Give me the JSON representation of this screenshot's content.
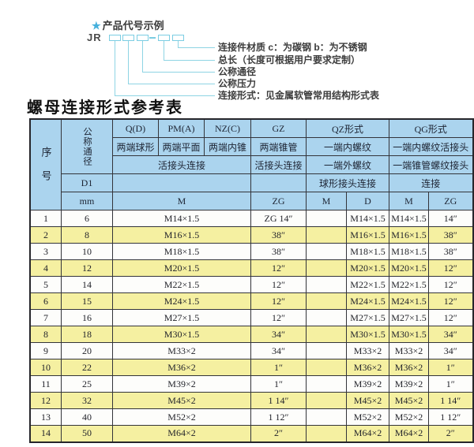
{
  "diagram": {
    "star": "★",
    "heading": "产品代号示例",
    "code_prefix": "JR",
    "labels": [
      "连接件材质  c：为碳钢  b：为不锈钢",
      "总长（长度可根据用户要求定制）",
      "公称通径",
      "公称压力",
      "连接形式：见金属软管常用结构形式表"
    ]
  },
  "title": "螺母连接形式参考表",
  "colors": {
    "header_blue": "#abd4ee",
    "row_yellow": "#f5f0a1",
    "line_cyan": "#8ed4e4"
  },
  "table": {
    "header": {
      "seq": "序号",
      "dn": "公称通径",
      "d1": "D1",
      "mm": "mm",
      "q_form": "Q(D)",
      "q_desc": "两端球形",
      "pm_form": "PM(A)",
      "pm_desc": "两端平面",
      "nz_form": "NZ(C)",
      "nz_desc": "两端内锥",
      "union_conn": "活接头连接",
      "m_unit": "M",
      "gz_form": "GZ",
      "gz_desc": "两端锥管",
      "gz_conn": "活接头连接",
      "gz_unit": "ZG",
      "qz_form": "QZ形式",
      "qz_desc1": "一端内螺纹",
      "qz_desc2": "一端外螺纹",
      "qz_conn": "球形接头连接",
      "qz_m": "M",
      "qz_d": "D",
      "qg_form": "QG形式",
      "qg_desc1": "一端内螺纹活接头",
      "qg_desc2": "一端锥管螺纹接头",
      "qg_conn": "连接",
      "qg_m": "M",
      "qg_zg": "ZG"
    },
    "rows": [
      {
        "seq": "1",
        "dn": "6",
        "m": "M14×1.5",
        "gz_zg": "ZG 1/4\"",
        "qz_m": "",
        "qz_d": "M14×1.5",
        "qg_m": "M14×1.5",
        "qg_zg": "1/4\""
      },
      {
        "seq": "2",
        "dn": "8",
        "m": "M16×1.5",
        "gz_zg": "3/8\"",
        "qz_m": "",
        "qz_d": "M16×1.5",
        "qg_m": "M16×1.5",
        "qg_zg": "3/8\""
      },
      {
        "seq": "3",
        "dn": "10",
        "m": "M18×1.5",
        "gz_zg": "3/8\"",
        "qz_m": "",
        "qz_d": "M18×1.5",
        "qg_m": "M18×1.5",
        "qg_zg": "3/8\""
      },
      {
        "seq": "4",
        "dn": "12",
        "m": "M20×1.5",
        "gz_zg": "1/2\"",
        "qz_m": "",
        "qz_d": "M20×1.5",
        "qg_m": "M20×1.5",
        "qg_zg": "1/2\""
      },
      {
        "seq": "5",
        "dn": "14",
        "m": "M22×1.5",
        "gz_zg": "1/2\"",
        "qz_m": "",
        "qz_d": "M22×1.5",
        "qg_m": "M22×1.5",
        "qg_zg": "1/2\""
      },
      {
        "seq": "6",
        "dn": "15",
        "m": "M24×1.5",
        "gz_zg": "1/2\"",
        "qz_m": "",
        "qz_d": "M24×1.5",
        "qg_m": "M24×1.5",
        "qg_zg": "1/2\""
      },
      {
        "seq": "7",
        "dn": "16",
        "m": "M27×1.5",
        "gz_zg": "1/2\"",
        "qz_m": "",
        "qz_d": "M27×1.5",
        "qg_m": "M27×1.5",
        "qg_zg": "1/2\""
      },
      {
        "seq": "8",
        "dn": "18",
        "m": "M30×1.5",
        "gz_zg": "3/4\"",
        "qz_m": "",
        "qz_d": "M30×1.5",
        "qg_m": "M30×1.5",
        "qg_zg": "3/4\""
      },
      {
        "seq": "9",
        "dn": "20",
        "m": "M33×2",
        "gz_zg": "3/4\"",
        "qz_m": "",
        "qz_d": "M33×2",
        "qg_m": "M33×2",
        "qg_zg": "3/4\""
      },
      {
        "seq": "10",
        "dn": "22",
        "m": "M36×2",
        "gz_zg": "1\"",
        "qz_m": "",
        "qz_d": "M36×2",
        "qg_m": "M36×2",
        "qg_zg": "1\""
      },
      {
        "seq": "11",
        "dn": "25",
        "m": "M39×2",
        "gz_zg": "1\"",
        "qz_m": "",
        "qz_d": "M39×2",
        "qg_m": "M39×2",
        "qg_zg": "1\""
      },
      {
        "seq": "12",
        "dn": "32",
        "m": "M45×2",
        "gz_zg": "1 1/4\"",
        "qz_m": "",
        "qz_d": "M45×2",
        "qg_m": "M45×2",
        "qg_zg": "1 1/4\""
      },
      {
        "seq": "13",
        "dn": "40",
        "m": "M52×2",
        "gz_zg": "1 1/2\"",
        "qz_m": "",
        "qz_d": "M52×2",
        "qg_m": "M52×2",
        "qg_zg": "1 1/2\""
      },
      {
        "seq": "14",
        "dn": "50",
        "m": "M64×2",
        "gz_zg": "2\"",
        "qz_m": "",
        "qz_d": "M64×2",
        "qg_m": "M64×2",
        "qg_zg": "2\""
      }
    ]
  }
}
